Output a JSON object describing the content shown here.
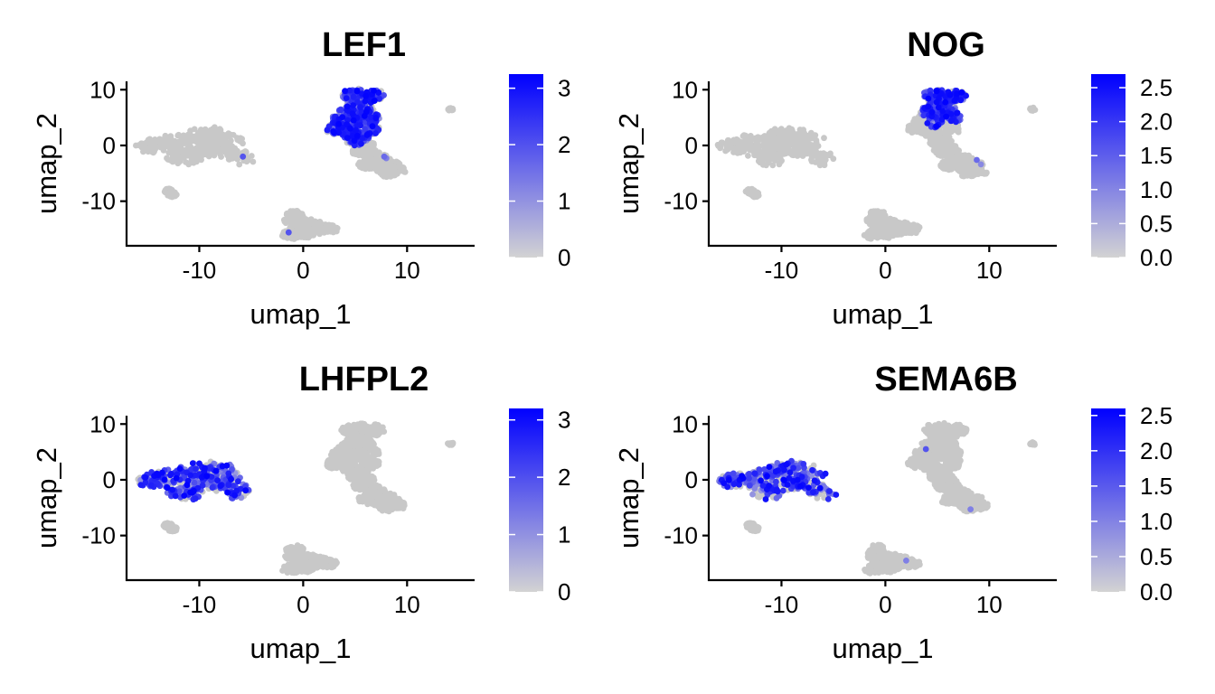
{
  "chart_data": [
    {
      "type": "scatter",
      "title": "LEF1",
      "xlabel": "umap_1",
      "ylabel": "umap_2",
      "x_ticks": [
        -10,
        0,
        10
      ],
      "x_tick_labels": [
        "-10",
        "0",
        "10"
      ],
      "y_ticks": [
        -10,
        0,
        10
      ],
      "y_tick_labels": [
        "-10",
        "0",
        "10"
      ],
      "xlim": [
        -17,
        16.5
      ],
      "ylim": [
        -18,
        11.5
      ],
      "grid": false,
      "legend": {
        "position": "right",
        "type": "continuous-colorbar",
        "min": 0,
        "max": 3.25,
        "ticks": [
          0,
          1,
          2,
          3
        ],
        "tick_labels": [
          "0",
          "1",
          "2",
          "3"
        ],
        "low_color": "#d3d3d3",
        "high_color": "#0000ff"
      },
      "highlight_clusters": [
        "upper-right"
      ],
      "clusters": [
        {
          "id": "left",
          "points": [
            [
              -15,
              -0.2
            ],
            [
              -14,
              -0.3
            ],
            [
              -13,
              0.3
            ],
            [
              -12,
              0.8
            ],
            [
              -11,
              1.4
            ],
            [
              -10,
              2.0
            ],
            [
              -9,
              2.3
            ],
            [
              -8,
              2.0
            ],
            [
              -7,
              0.8
            ],
            [
              -6.5,
              -1.6
            ],
            [
              -6,
              -2.5
            ],
            [
              -12,
              -1.2
            ],
            [
              -11,
              -1.4
            ],
            [
              -9,
              -0.4
            ],
            [
              -10,
              -1.3
            ],
            [
              -8,
              -1.0
            ],
            [
              -11,
              -2.6
            ],
            [
              -12,
              -2.0
            ]
          ],
          "rx": 1.4,
          "ry": 1.2
        },
        {
          "id": "small-left",
          "points": [
            [
              -13,
              -8.2
            ],
            [
              -12.6,
              -8.8
            ]
          ],
          "rx": 0.5,
          "ry": 0.5
        },
        {
          "id": "upper-right",
          "points": [
            [
              4.5,
              9.0
            ],
            [
              5.5,
              9.2
            ],
            [
              6.5,
              8.5
            ],
            [
              5.0,
              7.5
            ],
            [
              6.0,
              6.5
            ],
            [
              4.2,
              6.0
            ],
            [
              3.5,
              4.5
            ],
            [
              3.0,
              3.0
            ],
            [
              4.0,
              3.0
            ],
            [
              5.5,
              4.5
            ],
            [
              6.5,
              3.0
            ],
            [
              5.5,
              1.5
            ],
            [
              6.0,
              0.0
            ],
            [
              6.5,
              -1.5
            ],
            [
              7.5,
              -2.5
            ],
            [
              8.5,
              -3.5
            ],
            [
              9.0,
              -4.5
            ],
            [
              7.5,
              -4.0
            ],
            [
              6.2,
              -3.5
            ],
            [
              5.5,
              -1.0
            ],
            [
              5.0,
              0.8
            ],
            [
              4.5,
              2.2
            ]
          ],
          "rx": 0.9,
          "ry": 1.1
        },
        {
          "id": "bottom",
          "points": [
            [
              -1,
              -13.5
            ],
            [
              -0.5,
              -15
            ],
            [
              0.5,
              -14
            ],
            [
              1.5,
              -14.5
            ],
            [
              2.5,
              -15
            ],
            [
              -1.2,
              -16
            ],
            [
              0.2,
              -15.8
            ],
            [
              1.2,
              -15.2
            ]
          ],
          "rx": 0.9,
          "ry": 0.9
        },
        {
          "id": "dot",
          "points": [
            [
              14.2,
              6.5
            ]
          ],
          "rx": 0.3,
          "ry": 0.3
        }
      ]
    },
    {
      "type": "scatter",
      "title": "NOG",
      "xlabel": "umap_1",
      "ylabel": "umap_2",
      "x_ticks": [
        -10,
        0,
        10
      ],
      "x_tick_labels": [
        "-10",
        "0",
        "10"
      ],
      "y_ticks": [
        -10,
        0,
        10
      ],
      "y_tick_labels": [
        "-10",
        "0",
        "10"
      ],
      "xlim": [
        -17,
        16.5
      ],
      "ylim": [
        -18,
        11.5
      ],
      "grid": false,
      "legend": {
        "position": "right",
        "type": "continuous-colorbar",
        "min": 0,
        "max": 2.7,
        "ticks": [
          0.0,
          0.5,
          1.0,
          1.5,
          2.0,
          2.5
        ],
        "tick_labels": [
          "0.0",
          "0.5",
          "1.0",
          "1.5",
          "2.0",
          "2.5"
        ],
        "low_color": "#d3d3d3",
        "high_color": "#0000ff"
      },
      "highlight_clusters": [
        "upper-right-top"
      ],
      "clusters": []
    },
    {
      "type": "scatter",
      "title": "LHFPL2",
      "xlabel": "umap_1",
      "ylabel": "umap_2",
      "x_ticks": [
        -10,
        0,
        10
      ],
      "x_tick_labels": [
        "-10",
        "0",
        "10"
      ],
      "y_ticks": [
        -10,
        0,
        10
      ],
      "y_tick_labels": [
        "-10",
        "0",
        "10"
      ],
      "xlim": [
        -17,
        16.5
      ],
      "ylim": [
        -18,
        11.5
      ],
      "grid": false,
      "legend": {
        "position": "right",
        "type": "continuous-colorbar",
        "min": 0,
        "max": 3.2,
        "ticks": [
          0,
          1,
          2,
          3
        ],
        "tick_labels": [
          "0",
          "1",
          "2",
          "3"
        ],
        "low_color": "#d3d3d3",
        "high_color": "#0000ff"
      },
      "highlight_clusters": [
        "left"
      ],
      "clusters": []
    },
    {
      "type": "scatter",
      "title": "SEMA6B",
      "xlabel": "umap_1",
      "ylabel": "umap_2",
      "x_ticks": [
        -10,
        0,
        10
      ],
      "x_tick_labels": [
        "-10",
        "0",
        "10"
      ],
      "y_ticks": [
        -10,
        0,
        10
      ],
      "y_tick_labels": [
        "-10",
        "0",
        "10"
      ],
      "xlim": [
        -17,
        16.5
      ],
      "ylim": [
        -18,
        11.5
      ],
      "grid": false,
      "legend": {
        "position": "right",
        "type": "continuous-colorbar",
        "min": 0,
        "max": 2.6,
        "ticks": [
          0.0,
          0.5,
          1.0,
          1.5,
          2.0,
          2.5
        ],
        "tick_labels": [
          "0.0",
          "0.5",
          "1.0",
          "1.5",
          "2.0",
          "2.5"
        ],
        "low_color": "#d3d3d3",
        "high_color": "#0000ff"
      },
      "highlight_clusters": [
        "left"
      ],
      "clusters": []
    }
  ],
  "colors": {
    "background_points": "#c8c8c8",
    "low": "#d3d3d3",
    "high": "#0000ff"
  }
}
